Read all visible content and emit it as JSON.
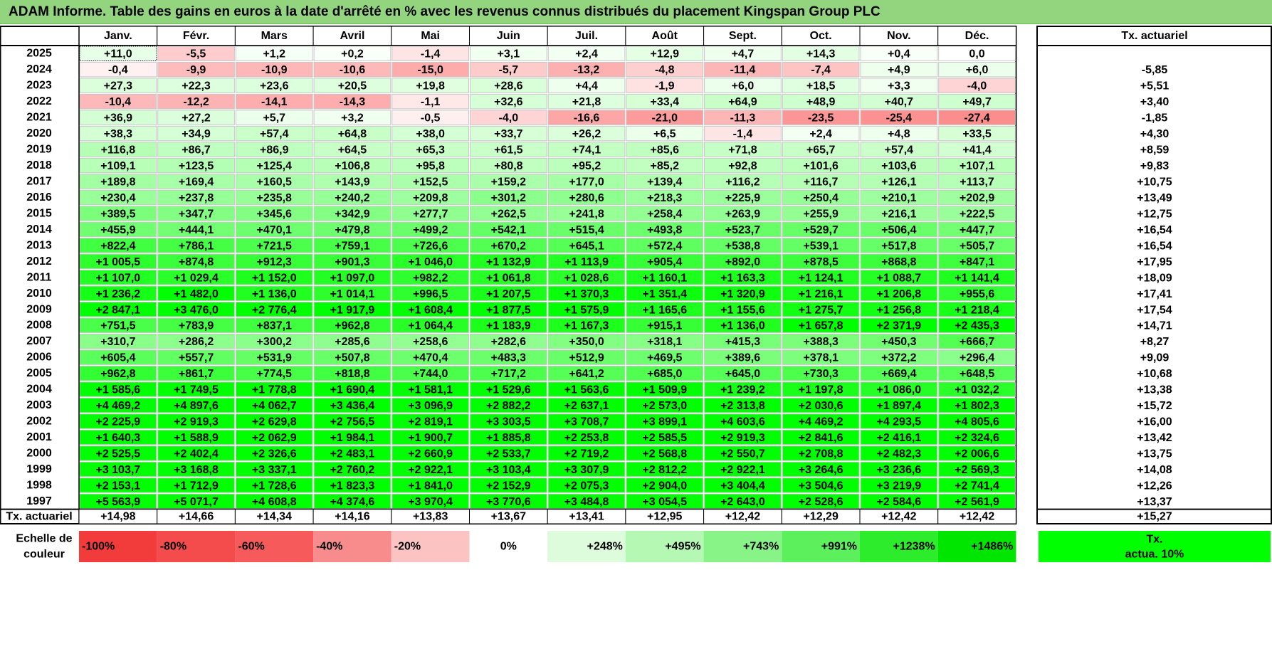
{
  "title": "ADAM Informe. Table des gains en euros à la date d'arrêté en % avec les revenus connus distribués du placement Kingspan Group PLC",
  "months": [
    "Janv.",
    "Févr.",
    "Mars",
    "Avril",
    "Mai",
    "Juin",
    "Juil.",
    "Août",
    "Sept.",
    "Oct.",
    "Nov.",
    "Déc."
  ],
  "tx_header": "Tx. actuariel",
  "footer_label": "Tx. actuariel",
  "legend_label_line1": "Echelle de",
  "legend_label_line2": "couleur",
  "legend_tx_line1": "Tx.",
  "legend_tx_line2": "actua. 10%",
  "colors": {
    "title_bg": "#92d57e",
    "positive_max": "#00ff00",
    "negative_max": "#ff0000",
    "legend_tx": "#00ff00"
  },
  "chart_data": {
    "type": "table",
    "rows": [
      {
        "year": "2025",
        "values": [
          "+11,0",
          "-5,5",
          "+1,2",
          "+0,2",
          "-1,4",
          "+3,1",
          "+2,4",
          "+12,9",
          "+4,7",
          "+14,3",
          "+0,4",
          "0,0"
        ],
        "tx": ""
      },
      {
        "year": "2024",
        "values": [
          "-0,4",
          "-9,9",
          "-10,9",
          "-10,6",
          "-15,0",
          "-5,7",
          "-13,2",
          "-4,8",
          "-11,4",
          "-7,4",
          "+4,9",
          "+6,0"
        ],
        "tx": "-5,85"
      },
      {
        "year": "2023",
        "values": [
          "+27,3",
          "+22,3",
          "+23,6",
          "+20,5",
          "+19,8",
          "+28,6",
          "+4,4",
          "-1,9",
          "+6,0",
          "+18,5",
          "+3,3",
          "-4,0"
        ],
        "tx": "+5,51"
      },
      {
        "year": "2022",
        "values": [
          "-10,4",
          "-12,2",
          "-14,1",
          "-14,3",
          "-1,1",
          "+32,6",
          "+21,8",
          "+33,4",
          "+64,9",
          "+48,9",
          "+40,7",
          "+49,7"
        ],
        "tx": "+3,40"
      },
      {
        "year": "2021",
        "values": [
          "+36,9",
          "+27,2",
          "+5,7",
          "+3,2",
          "-0,5",
          "-4,0",
          "-16,6",
          "-21,0",
          "-11,3",
          "-23,5",
          "-25,4",
          "-27,4"
        ],
        "tx": "-1,85"
      },
      {
        "year": "2020",
        "values": [
          "+38,3",
          "+34,9",
          "+57,4",
          "+64,8",
          "+38,0",
          "+33,7",
          "+26,2",
          "+6,5",
          "-1,4",
          "+2,4",
          "+4,8",
          "+33,5"
        ],
        "tx": "+4,30"
      },
      {
        "year": "2019",
        "values": [
          "+116,8",
          "+86,7",
          "+86,9",
          "+64,5",
          "+65,3",
          "+61,5",
          "+74,1",
          "+85,6",
          "+71,8",
          "+65,7",
          "+57,4",
          "+41,4"
        ],
        "tx": "+8,59"
      },
      {
        "year": "2018",
        "values": [
          "+109,1",
          "+123,5",
          "+125,4",
          "+106,8",
          "+95,8",
          "+80,8",
          "+95,2",
          "+85,2",
          "+92,8",
          "+101,6",
          "+103,6",
          "+107,1"
        ],
        "tx": "+9,83"
      },
      {
        "year": "2017",
        "values": [
          "+189,8",
          "+169,4",
          "+160,5",
          "+143,9",
          "+152,5",
          "+159,2",
          "+177,0",
          "+139,4",
          "+116,2",
          "+116,7",
          "+126,1",
          "+113,7"
        ],
        "tx": "+10,75"
      },
      {
        "year": "2016",
        "values": [
          "+230,4",
          "+237,8",
          "+235,8",
          "+240,2",
          "+209,8",
          "+301,2",
          "+280,6",
          "+218,3",
          "+225,9",
          "+250,4",
          "+210,1",
          "+202,9"
        ],
        "tx": "+13,49"
      },
      {
        "year": "2015",
        "values": [
          "+389,5",
          "+347,7",
          "+345,6",
          "+342,9",
          "+277,7",
          "+262,5",
          "+241,8",
          "+258,4",
          "+263,9",
          "+255,9",
          "+216,1",
          "+222,5"
        ],
        "tx": "+12,75"
      },
      {
        "year": "2014",
        "values": [
          "+455,9",
          "+444,1",
          "+470,1",
          "+479,8",
          "+499,2",
          "+542,1",
          "+515,4",
          "+493,8",
          "+523,7",
          "+529,7",
          "+506,4",
          "+447,7"
        ],
        "tx": "+16,54"
      },
      {
        "year": "2013",
        "values": [
          "+822,4",
          "+786,1",
          "+721,5",
          "+759,1",
          "+726,6",
          "+670,2",
          "+645,1",
          "+572,4",
          "+538,8",
          "+539,1",
          "+517,8",
          "+505,7"
        ],
        "tx": "+16,54"
      },
      {
        "year": "2012",
        "values": [
          "+1 005,5",
          "+874,8",
          "+912,3",
          "+901,3",
          "+1 046,0",
          "+1 132,9",
          "+1 113,9",
          "+905,4",
          "+892,0",
          "+878,5",
          "+868,8",
          "+847,1"
        ],
        "tx": "+17,95"
      },
      {
        "year": "2011",
        "values": [
          "+1 107,0",
          "+1 029,4",
          "+1 152,0",
          "+1 097,0",
          "+982,2",
          "+1 061,8",
          "+1 028,6",
          "+1 160,1",
          "+1 163,3",
          "+1 124,1",
          "+1 088,7",
          "+1 141,4"
        ],
        "tx": "+18,09"
      },
      {
        "year": "2010",
        "values": [
          "+1 236,2",
          "+1 482,0",
          "+1 136,0",
          "+1 014,1",
          "+996,5",
          "+1 207,5",
          "+1 370,3",
          "+1 351,4",
          "+1 320,9",
          "+1 216,1",
          "+1 206,8",
          "+955,6"
        ],
        "tx": "+17,41"
      },
      {
        "year": "2009",
        "values": [
          "+2 847,1",
          "+3 476,0",
          "+2 776,4",
          "+1 917,9",
          "+1 608,4",
          "+1 877,5",
          "+1 575,9",
          "+1 165,6",
          "+1 155,6",
          "+1 275,7",
          "+1 256,8",
          "+1 218,4"
        ],
        "tx": "+17,54"
      },
      {
        "year": "2008",
        "values": [
          "+751,5",
          "+783,9",
          "+837,1",
          "+962,8",
          "+1 064,4",
          "+1 183,9",
          "+1 167,3",
          "+915,1",
          "+1 136,0",
          "+1 657,8",
          "+2 371,9",
          "+2 435,3"
        ],
        "tx": "+14,71"
      },
      {
        "year": "2007",
        "values": [
          "+310,7",
          "+286,2",
          "+300,2",
          "+285,6",
          "+258,6",
          "+282,6",
          "+350,0",
          "+318,1",
          "+415,3",
          "+388,3",
          "+450,3",
          "+666,7"
        ],
        "tx": "+8,27"
      },
      {
        "year": "2006",
        "values": [
          "+605,4",
          "+557,7",
          "+531,9",
          "+507,8",
          "+470,4",
          "+483,3",
          "+512,9",
          "+469,5",
          "+389,6",
          "+378,1",
          "+372,2",
          "+296,4"
        ],
        "tx": "+9,09"
      },
      {
        "year": "2005",
        "values": [
          "+962,8",
          "+861,7",
          "+774,5",
          "+818,8",
          "+744,0",
          "+717,2",
          "+641,2",
          "+685,0",
          "+645,0",
          "+730,3",
          "+669,4",
          "+648,5"
        ],
        "tx": "+10,68"
      },
      {
        "year": "2004",
        "values": [
          "+1 585,6",
          "+1 749,5",
          "+1 778,8",
          "+1 690,4",
          "+1 581,1",
          "+1 529,6",
          "+1 563,6",
          "+1 509,9",
          "+1 239,2",
          "+1 197,8",
          "+1 086,0",
          "+1 032,2"
        ],
        "tx": "+13,38"
      },
      {
        "year": "2003",
        "values": [
          "+4 469,2",
          "+4 897,6",
          "+4 062,7",
          "+3 436,4",
          "+3 096,9",
          "+2 882,2",
          "+2 637,1",
          "+2 573,0",
          "+2 313,8",
          "+2 030,6",
          "+1 897,4",
          "+1 802,3"
        ],
        "tx": "+15,72"
      },
      {
        "year": "2002",
        "values": [
          "+2 225,9",
          "+2 919,3",
          "+2 629,8",
          "+2 756,5",
          "+2 819,1",
          "+3 303,5",
          "+3 708,7",
          "+3 899,1",
          "+4 603,6",
          "+4 469,2",
          "+4 293,5",
          "+4 805,6"
        ],
        "tx": "+16,00"
      },
      {
        "year": "2001",
        "values": [
          "+1 640,3",
          "+1 588,9",
          "+2 062,9",
          "+1 984,1",
          "+1 900,7",
          "+1 885,8",
          "+2 253,8",
          "+2 585,5",
          "+2 919,3",
          "+2 841,6",
          "+2 416,1",
          "+2 324,6"
        ],
        "tx": "+13,42"
      },
      {
        "year": "2000",
        "values": [
          "+2 525,5",
          "+2 402,4",
          "+2 326,6",
          "+2 483,1",
          "+2 660,9",
          "+2 533,7",
          "+2 719,2",
          "+2 568,8",
          "+2 550,7",
          "+2 708,8",
          "+2 482,3",
          "+2 006,6"
        ],
        "tx": "+13,75"
      },
      {
        "year": "1999",
        "values": [
          "+3 103,7",
          "+3 168,8",
          "+3 337,1",
          "+2 760,2",
          "+2 922,1",
          "+3 103,4",
          "+3 307,9",
          "+2 812,2",
          "+2 922,1",
          "+3 264,6",
          "+3 236,6",
          "+2 569,3"
        ],
        "tx": "+14,08"
      },
      {
        "year": "1998",
        "values": [
          "+2 153,1",
          "+1 712,9",
          "+1 728,6",
          "+1 823,3",
          "+1 841,0",
          "+2 152,9",
          "+2 075,3",
          "+2 904,0",
          "+3 404,4",
          "+3 504,6",
          "+3 219,9",
          "+2 741,4"
        ],
        "tx": "+12,26"
      },
      {
        "year": "1997",
        "values": [
          "+5 563,9",
          "+5 071,7",
          "+4 608,8",
          "+4 374,6",
          "+3 970,4",
          "+3 770,6",
          "+3 484,8",
          "+3 054,5",
          "+2 643,0",
          "+2 528,6",
          "+2 584,6",
          "+2 561,9"
        ],
        "tx": "+13,37"
      }
    ],
    "footer": {
      "values": [
        "+14,98",
        "+14,66",
        "+14,34",
        "+14,16",
        "+13,83",
        "+13,67",
        "+13,41",
        "+12,95",
        "+12,42",
        "+12,29",
        "+12,42",
        "+12,42"
      ],
      "tx": "+15,27"
    },
    "legend": [
      {
        "label": "-100%",
        "color": "#f23c3c"
      },
      {
        "label": "-80%",
        "color": "#f44c4c"
      },
      {
        "label": "-60%",
        "color": "#f65a5a"
      },
      {
        "label": "-40%",
        "color": "#f88c8c"
      },
      {
        "label": "-20%",
        "color": "#fcc3c3"
      },
      {
        "label": "0%",
        "color": "#ffffff"
      },
      {
        "label": "+248%",
        "color": "#dcfcdc"
      },
      {
        "label": "+495%",
        "color": "#b4f8b4"
      },
      {
        "label": "+743%",
        "color": "#88f488"
      },
      {
        "label": "+991%",
        "color": "#5cf05c"
      },
      {
        "label": "+1238%",
        "color": "#2cec2c"
      },
      {
        "label": "+1486%",
        "color": "#00e600"
      }
    ]
  }
}
